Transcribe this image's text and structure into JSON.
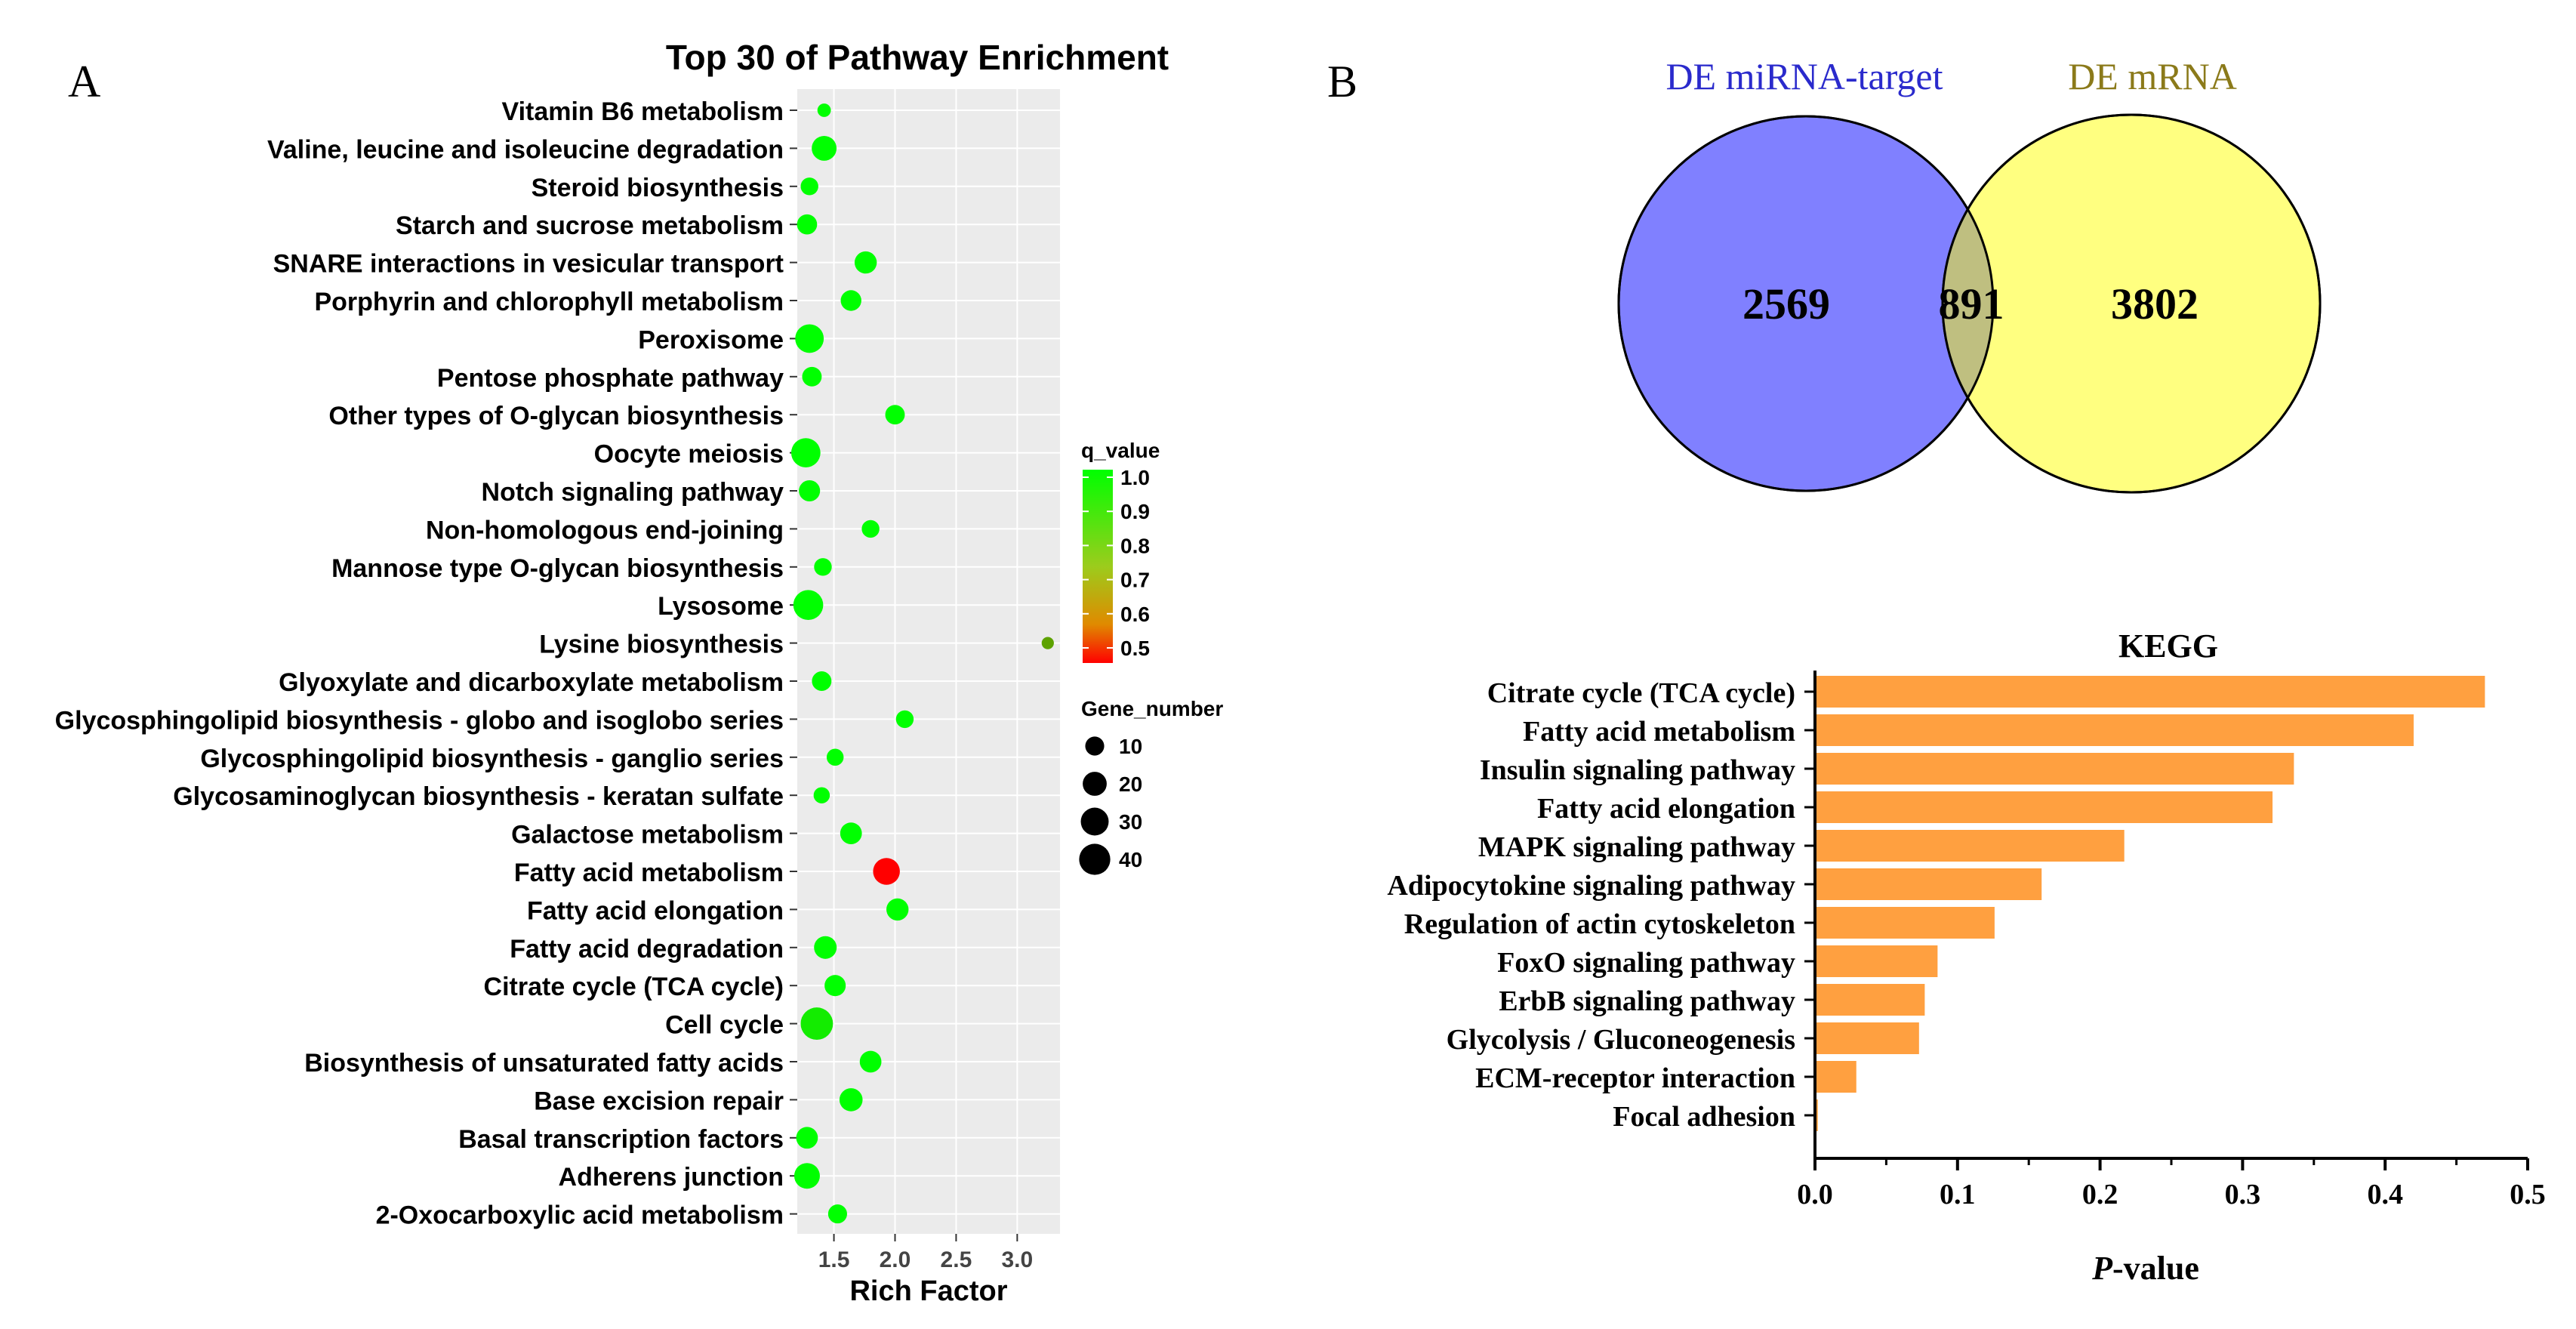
{
  "panel_labels": {
    "a": "A",
    "b": "B"
  },
  "chart_data": [
    {
      "panel": "A",
      "type": "scatter",
      "title": "Top 30 of Pathway Enrichment",
      "xlabel": "Rich Factor",
      "ylabel": "",
      "xlim": [
        1.2,
        3.35
      ],
      "xticks": [
        "1.5",
        "2.0",
        "2.5",
        "3.0"
      ],
      "grid": true,
      "color_legend": {
        "title": "q_value",
        "ticks": [
          "1.0",
          "0.9",
          "0.8",
          "0.7",
          "0.6",
          "0.5"
        ],
        "range": [
          0.45,
          1.0
        ],
        "low_color": "#ff0000",
        "high_color": "#00ff00"
      },
      "size_legend": {
        "title": "Gene_number",
        "values": [
          10,
          20,
          30,
          40
        ],
        "labels": [
          "10",
          "20",
          "30",
          "40"
        ]
      },
      "points": [
        {
          "pathway": "Vitamin B6 metabolism",
          "rich_factor": 1.42,
          "q_value": 1.0,
          "gene_number": 3
        },
        {
          "pathway": "Valine, leucine and isoleucine degradation",
          "rich_factor": 1.42,
          "q_value": 1.0,
          "gene_number": 22
        },
        {
          "pathway": "Steroid biosynthesis",
          "rich_factor": 1.3,
          "q_value": 1.0,
          "gene_number": 8
        },
        {
          "pathway": "Starch and sucrose metabolism",
          "rich_factor": 1.28,
          "q_value": 1.0,
          "gene_number": 12
        },
        {
          "pathway": "SNARE interactions in vesicular transport",
          "rich_factor": 1.76,
          "q_value": 1.0,
          "gene_number": 16
        },
        {
          "pathway": "Porphyrin and chlorophyll metabolism",
          "rich_factor": 1.64,
          "q_value": 1.0,
          "gene_number": 13
        },
        {
          "pathway": "Peroxisome",
          "rich_factor": 1.3,
          "q_value": 1.0,
          "gene_number": 32
        },
        {
          "pathway": "Pentose phosphate pathway",
          "rich_factor": 1.32,
          "q_value": 1.0,
          "gene_number": 11
        },
        {
          "pathway": "Other types of O-glycan biosynthesis",
          "rich_factor": 2.0,
          "q_value": 1.0,
          "gene_number": 11
        },
        {
          "pathway": "Oocyte meiosis",
          "rich_factor": 1.27,
          "q_value": 1.0,
          "gene_number": 34
        },
        {
          "pathway": "Notch signaling pathway",
          "rich_factor": 1.3,
          "q_value": 1.0,
          "gene_number": 14
        },
        {
          "pathway": "Non-homologous end-joining",
          "rich_factor": 1.8,
          "q_value": 1.0,
          "gene_number": 8
        },
        {
          "pathway": "Mannose type O-glycan biosynthesis",
          "rich_factor": 1.41,
          "q_value": 1.0,
          "gene_number": 8
        },
        {
          "pathway": "Lysosome",
          "rich_factor": 1.29,
          "q_value": 1.0,
          "gene_number": 36
        },
        {
          "pathway": "Lysine biosynthesis",
          "rich_factor": 3.25,
          "q_value": 0.8,
          "gene_number": 2
        },
        {
          "pathway": "Glyoxylate and dicarboxylate metabolism",
          "rich_factor": 1.4,
          "q_value": 1.0,
          "gene_number": 11
        },
        {
          "pathway": "Glycosphingolipid biosynthesis - globo and isoglobo series",
          "rich_factor": 2.08,
          "q_value": 1.0,
          "gene_number": 8
        },
        {
          "pathway": "Glycosphingolipid biosynthesis - ganglio series",
          "rich_factor": 1.51,
          "q_value": 1.0,
          "gene_number": 7
        },
        {
          "pathway": "Glycosaminoglycan biosynthesis - keratan sulfate",
          "rich_factor": 1.4,
          "q_value": 1.0,
          "gene_number": 6
        },
        {
          "pathway": "Galactose metabolism",
          "rich_factor": 1.64,
          "q_value": 1.0,
          "gene_number": 15
        },
        {
          "pathway": "Fatty acid metabolism",
          "rich_factor": 1.93,
          "q_value": 0.45,
          "gene_number": 27
        },
        {
          "pathway": "Fatty acid elongation",
          "rich_factor": 2.02,
          "q_value": 1.0,
          "gene_number": 16
        },
        {
          "pathway": "Fatty acid degradation",
          "rich_factor": 1.43,
          "q_value": 1.0,
          "gene_number": 17
        },
        {
          "pathway": "Citrate cycle (TCA cycle)",
          "rich_factor": 1.51,
          "q_value": 1.0,
          "gene_number": 14
        },
        {
          "pathway": "Cell cycle",
          "rich_factor": 1.36,
          "q_value": 0.96,
          "gene_number": 44
        },
        {
          "pathway": "Biosynthesis of unsaturated fatty acids",
          "rich_factor": 1.8,
          "q_value": 1.0,
          "gene_number": 15
        },
        {
          "pathway": "Base excision repair",
          "rich_factor": 1.64,
          "q_value": 1.0,
          "gene_number": 18
        },
        {
          "pathway": "Basal transcription factors",
          "rich_factor": 1.28,
          "q_value": 1.0,
          "gene_number": 15
        },
        {
          "pathway": "Adherens junction",
          "rich_factor": 1.28,
          "q_value": 1.0,
          "gene_number": 24
        },
        {
          "pathway": "2-Oxocarboxylic acid metabolism",
          "rich_factor": 1.53,
          "q_value": 1.0,
          "gene_number": 10
        }
      ]
    },
    {
      "panel": "B",
      "type": "venn",
      "sets": [
        {
          "name": "DE miRNA-target",
          "only": "2569",
          "color": "#8080ff",
          "label_color": "#2a2acc"
        },
        {
          "name": "DE mRNA",
          "only": "3802",
          "color": "#ffff80",
          "label_color": "#8b7a1a"
        }
      ],
      "intersection": "891",
      "intersection_color": "#bfbf80"
    },
    {
      "panel": "B",
      "type": "bar",
      "orientation": "horizontal",
      "title": "KEGG",
      "xlabel_italic": "P",
      "xlabel_rest": "-value",
      "xlim": [
        0,
        0.5
      ],
      "xticks": [
        "0.0",
        "0.1",
        "0.2",
        "0.3",
        "0.4",
        "0.5"
      ],
      "bar_color": "#ffa040",
      "categories": [
        "Citrate cycle (TCA cycle)",
        "Fatty acid metabolism",
        "Insulin signaling pathway",
        "Fatty acid elongation",
        "MAPK signaling pathway",
        "Adipocytokine signaling pathway",
        "Regulation of actin cytoskeleton",
        "FoxO signaling pathway",
        "ErbB signaling pathway",
        "Glycolysis / Gluconeogenesis",
        "ECM-receptor interaction",
        "Focal adhesion"
      ],
      "values": [
        0.47,
        0.42,
        0.336,
        0.321,
        0.217,
        0.159,
        0.126,
        0.086,
        0.077,
        0.073,
        0.029,
        0.002
      ]
    }
  ]
}
